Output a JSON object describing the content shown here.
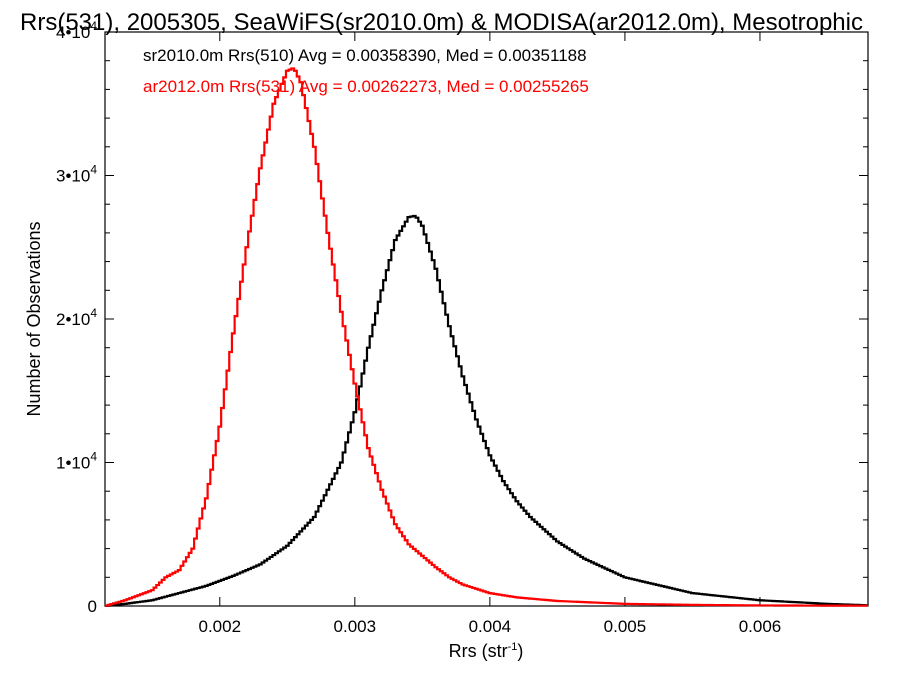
{
  "chart_data": {
    "type": "line",
    "title": "Rrs(531), 2005305, SeaWiFS(sr2010.0m) & MODISA(ar2012.0m), Mesotrophic",
    "xlabel_main": "Rrs (str",
    "xlabel_sup": "-1",
    "xlabel_end": ")",
    "ylabel": "Number of Observations",
    "xlim": [
      0.00115,
      0.0068
    ],
    "ylim": [
      0,
      40000
    ],
    "x_ticks": [
      {
        "value": 0.002,
        "label": "0.002"
      },
      {
        "value": 0.003,
        "label": "0.003"
      },
      {
        "value": 0.004,
        "label": "0.004"
      },
      {
        "value": 0.005,
        "label": "0.005"
      },
      {
        "value": 0.006,
        "label": "0.006"
      }
    ],
    "y_ticks": [
      {
        "value": 0,
        "base": "0",
        "exp": ""
      },
      {
        "value": 10000,
        "base": "1•10",
        "exp": "4"
      },
      {
        "value": 20000,
        "base": "2•10",
        "exp": "4"
      },
      {
        "value": 30000,
        "base": "3•10",
        "exp": "4"
      },
      {
        "value": 40000,
        "base": "4•10",
        "exp": "4"
      }
    ],
    "legend_placement": "top-left",
    "series": [
      {
        "name": "sr2010.0m Rrs(510) Avg = 0.00358390, Med = 0.00351188",
        "color": "#000000",
        "x": [
          0.00115,
          0.0013,
          0.0015,
          0.0017,
          0.0019,
          0.0021,
          0.0023,
          0.0025,
          0.0027,
          0.0029,
          0.003,
          0.0031,
          0.0032,
          0.0033,
          0.0034,
          0.00345,
          0.0035,
          0.0036,
          0.0037,
          0.0038,
          0.0039,
          0.004,
          0.0041,
          0.0042,
          0.0043,
          0.0045,
          0.0047,
          0.005,
          0.0055,
          0.006,
          0.0065,
          0.0068
        ],
        "y": [
          0,
          150,
          400,
          900,
          1400,
          2100,
          2900,
          4200,
          6200,
          10000,
          13500,
          18000,
          22000,
          25500,
          27100,
          27200,
          26500,
          23500,
          19500,
          16000,
          13000,
          10500,
          8700,
          7300,
          6200,
          4500,
          3300,
          2000,
          900,
          400,
          150,
          50
        ]
      },
      {
        "name": "ar2012.0m Rrs(531) Avg = 0.00262273, Med = 0.00255265",
        "color": "#ff0000",
        "x": [
          0.00115,
          0.0013,
          0.0015,
          0.0016,
          0.0017,
          0.0018,
          0.0019,
          0.002,
          0.0021,
          0.0022,
          0.0023,
          0.0024,
          0.0025,
          0.00255,
          0.0026,
          0.0027,
          0.0028,
          0.0029,
          0.003,
          0.0031,
          0.0032,
          0.0033,
          0.0034,
          0.0035,
          0.0036,
          0.0037,
          0.0038,
          0.004,
          0.0042,
          0.0045,
          0.005,
          0.0055,
          0.006,
          0.0068
        ],
        "y": [
          0,
          400,
          1100,
          2000,
          2500,
          4000,
          7500,
          12500,
          19000,
          25000,
          30500,
          35000,
          37300,
          37500,
          36500,
          32000,
          26000,
          20500,
          15500,
          11000,
          8100,
          5700,
          4300,
          3500,
          2700,
          2000,
          1500,
          900,
          600,
          350,
          150,
          80,
          40,
          20
        ]
      }
    ]
  }
}
